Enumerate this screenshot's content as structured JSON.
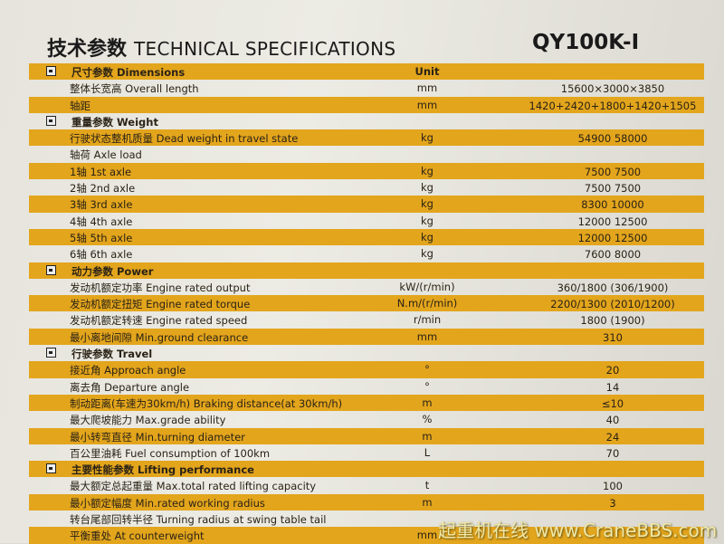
{
  "header": {
    "title_cn": "技术参数",
    "title_en": "TECHNICAL SPECIFICATIONS",
    "model": "QY100K-I"
  },
  "rows": [
    {
      "type": "section",
      "stripe": "y",
      "icon": "dimensions-icon",
      "label": "尺寸参数 Dimensions",
      "unit": "Unit",
      "value": ""
    },
    {
      "type": "item",
      "stripe": "w",
      "label": "整体长宽高  Overall length",
      "unit": "mm",
      "value": "15600×3000×3850"
    },
    {
      "type": "item",
      "stripe": "y",
      "label": "轴距",
      "unit": "mm",
      "value": "1420+2420+1800+1420+1505"
    },
    {
      "type": "section",
      "stripe": "w",
      "icon": "weight-icon",
      "label": "重量参数 Weight",
      "unit": "",
      "value": ""
    },
    {
      "type": "item",
      "stripe": "y",
      "label": "行驶状态整机质量  Dead weight in travel state",
      "unit": "kg",
      "value": "54900 58000"
    },
    {
      "type": "item",
      "stripe": "w",
      "label": "轴荷  Axle load",
      "unit": "",
      "value": ""
    },
    {
      "type": "item",
      "stripe": "y",
      "label": "1轴  1st axle",
      "unit": "kg",
      "value": "7500 7500"
    },
    {
      "type": "item",
      "stripe": "w",
      "label": "2轴  2nd axle",
      "unit": "kg",
      "value": "7500 7500"
    },
    {
      "type": "item",
      "stripe": "y",
      "label": "3轴  3rd axle",
      "unit": "kg",
      "value": "8300 10000"
    },
    {
      "type": "item",
      "stripe": "w",
      "label": "4轴  4th axle",
      "unit": "kg",
      "value": "12000 12500"
    },
    {
      "type": "item",
      "stripe": "y",
      "label": "5轴  5th axle",
      "unit": "kg",
      "value": "12000 12500"
    },
    {
      "type": "item",
      "stripe": "w",
      "label": "6轴  6th axle",
      "unit": "kg",
      "value": "7600 8000"
    },
    {
      "type": "section",
      "stripe": "y",
      "icon": "power-icon",
      "label": "动力参数 Power",
      "unit": "",
      "value": ""
    },
    {
      "type": "item",
      "stripe": "w",
      "label": "发动机额定功率 Engine rated output",
      "unit": "kW/(r/min)",
      "value": "360/1800 (306/1900)"
    },
    {
      "type": "item",
      "stripe": "y",
      "label": "发动机额定扭矩 Engine rated torque",
      "unit": "N.m/(r/min)",
      "value": "2200/1300 (2010/1200)"
    },
    {
      "type": "item",
      "stripe": "w",
      "label": "发动机额定转速 Engine rated speed",
      "unit": "r/min",
      "value": "1800 (1900)"
    },
    {
      "type": "item",
      "stripe": "y",
      "label": "最小离地间隙 Min.ground clearance",
      "unit": "mm",
      "value": "310"
    },
    {
      "type": "section",
      "stripe": "w",
      "icon": "travel-icon",
      "label": "行驶参数 Travel",
      "unit": "",
      "value": ""
    },
    {
      "type": "item",
      "stripe": "y",
      "label": "接近角 Approach angle",
      "unit": "°",
      "value": "20"
    },
    {
      "type": "item",
      "stripe": "w",
      "label": "离去角 Departure angle",
      "unit": "°",
      "value": "14"
    },
    {
      "type": "item",
      "stripe": "y",
      "label": "制动距离(车速为30km/h) Braking distance(at 30km/h)",
      "unit": "m",
      "value": "≤10"
    },
    {
      "type": "item",
      "stripe": "w",
      "label": "最大爬坡能力 Max.grade ability",
      "unit": "%",
      "value": "40"
    },
    {
      "type": "item",
      "stripe": "y",
      "label": "最小转弯直径 Min.turning diameter",
      "unit": "m",
      "value": "24"
    },
    {
      "type": "item",
      "stripe": "w",
      "label": "百公里油耗 Fuel consumption of 100km",
      "unit": "L",
      "value": "70"
    },
    {
      "type": "section",
      "stripe": "y",
      "icon": "lifting-icon",
      "label": "主要性能参数 Lifting performance",
      "unit": "",
      "value": ""
    },
    {
      "type": "item",
      "stripe": "w",
      "label": "最大额定总起重量  Max.total rated lifting capacity",
      "unit": "t",
      "value": "100"
    },
    {
      "type": "item",
      "stripe": "y",
      "label": "最小额定幅度  Min.rated working radius",
      "unit": "m",
      "value": "3"
    },
    {
      "type": "item",
      "stripe": "w",
      "label": "转台尾部回转半径 Turning radius at swing table tail",
      "unit": "",
      "value": ""
    },
    {
      "type": "item",
      "stripe": "y",
      "label": "平衡重处  At counterweight",
      "unit": "mm",
      "value": ""
    }
  ],
  "watermark": "起重机在线 www.CraneBBS.com",
  "colors": {
    "stripe": "#e3a51c",
    "paper": "#e8e6de",
    "text": "#2a2216"
  }
}
